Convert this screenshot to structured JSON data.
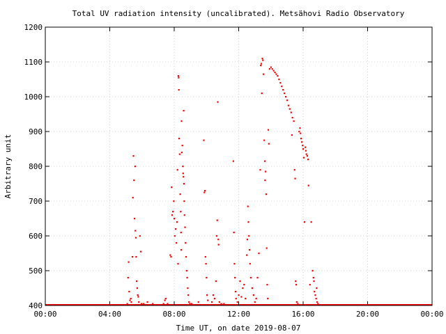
{
  "chart_data": {
    "type": "scatter",
    "title": "Total UV radiation intensity (uncalibrated). Metsähovi Radio Observatory",
    "xlabel": "Time UT, on date 2019-08-07",
    "ylabel": "Arbitrary unit",
    "xlim": [
      "00:00",
      "24:00"
    ],
    "ylim": [
      400,
      1200
    ],
    "x_ticks": [
      "00:00",
      "04:00",
      "08:00",
      "12:00",
      "16:00",
      "20:00",
      "00:00"
    ],
    "y_ticks": [
      400,
      500,
      600,
      700,
      800,
      900,
      1000,
      1100,
      1200
    ],
    "grid": true,
    "point_color": "#ff0000",
    "baseline": {
      "value": 400,
      "from": "00:00",
      "to": "24:00",
      "note_visible": false
    },
    "series": [
      {
        "points": [
          [
            "05:05",
            405
          ],
          [
            "05:08",
            480
          ],
          [
            "05:10",
            525
          ],
          [
            "05:12",
            440
          ],
          [
            "05:15",
            415
          ],
          [
            "05:18",
            420
          ],
          [
            "05:20",
            410
          ],
          [
            "05:24",
            540
          ],
          [
            "05:26",
            710
          ],
          [
            "05:28",
            830
          ],
          [
            "05:30",
            760
          ],
          [
            "05:32",
            650
          ],
          [
            "05:34",
            800
          ],
          [
            "05:35",
            615
          ],
          [
            "05:37",
            595
          ],
          [
            "05:38",
            540
          ],
          [
            "05:40",
            470
          ],
          [
            "05:42",
            450
          ],
          [
            "05:44",
            430
          ],
          [
            "05:46",
            425
          ],
          [
            "05:48",
            410
          ],
          [
            "05:52",
            600
          ],
          [
            "05:55",
            555
          ],
          [
            "05:58",
            405
          ],
          [
            "06:05",
            405
          ],
          [
            "06:20",
            410
          ],
          [
            "06:40",
            405
          ],
          [
            "07:20",
            405
          ],
          [
            "07:25",
            415
          ],
          [
            "07:28",
            420
          ],
          [
            "07:35",
            405
          ],
          [
            "07:45",
            545
          ],
          [
            "07:48",
            540
          ],
          [
            "07:50",
            740
          ],
          [
            "07:52",
            660
          ],
          [
            "07:55",
            670
          ],
          [
            "07:58",
            700
          ],
          [
            "08:00",
            650
          ],
          [
            "08:02",
            600
          ],
          [
            "08:05",
            620
          ],
          [
            "08:08",
            580
          ],
          [
            "08:10",
            640
          ],
          [
            "08:12",
            790
          ],
          [
            "08:14",
            520
          ],
          [
            "08:15",
            1060
          ],
          [
            "08:16",
            1055
          ],
          [
            "08:17",
            1020
          ],
          [
            "08:18",
            880
          ],
          [
            "08:20",
            835
          ],
          [
            "08:22",
            720
          ],
          [
            "08:24",
            670
          ],
          [
            "08:25",
            610
          ],
          [
            "08:26",
            560
          ],
          [
            "08:27",
            930
          ],
          [
            "08:28",
            840
          ],
          [
            "08:30",
            860
          ],
          [
            "08:32",
            800
          ],
          [
            "08:33",
            780
          ],
          [
            "08:34",
            770
          ],
          [
            "08:35",
            960
          ],
          [
            "08:36",
            750
          ],
          [
            "08:37",
            700
          ],
          [
            "08:38",
            660
          ],
          [
            "08:40",
            625
          ],
          [
            "08:42",
            580
          ],
          [
            "08:44",
            540
          ],
          [
            "08:46",
            500
          ],
          [
            "08:48",
            480
          ],
          [
            "08:50",
            450
          ],
          [
            "08:52",
            430
          ],
          [
            "08:55",
            410
          ],
          [
            "08:58",
            405
          ],
          [
            "09:05",
            405
          ],
          [
            "09:30",
            410
          ],
          [
            "09:50",
            875
          ],
          [
            "09:52",
            725
          ],
          [
            "09:54",
            730
          ],
          [
            "09:56",
            540
          ],
          [
            "09:58",
            520
          ],
          [
            "10:00",
            480
          ],
          [
            "10:02",
            430
          ],
          [
            "10:05",
            415
          ],
          [
            "10:20",
            410
          ],
          [
            "10:25",
            430
          ],
          [
            "10:30",
            420
          ],
          [
            "10:35",
            470
          ],
          [
            "10:38",
            600
          ],
          [
            "10:40",
            645
          ],
          [
            "10:42",
            985
          ],
          [
            "10:44",
            590
          ],
          [
            "10:45",
            575
          ],
          [
            "10:48",
            410
          ],
          [
            "10:55",
            405
          ],
          [
            "11:05",
            405
          ],
          [
            "11:40",
            815
          ],
          [
            "11:42",
            610
          ],
          [
            "11:44",
            520
          ],
          [
            "11:46",
            480
          ],
          [
            "11:48",
            440
          ],
          [
            "11:50",
            420
          ],
          [
            "11:55",
            410
          ],
          [
            "12:00",
            430
          ],
          [
            "12:05",
            470
          ],
          [
            "12:10",
            425
          ],
          [
            "12:15",
            450
          ],
          [
            "12:20",
            460
          ],
          [
            "12:25",
            420
          ],
          [
            "12:30",
            545
          ],
          [
            "12:32",
            590
          ],
          [
            "12:34",
            685
          ],
          [
            "12:36",
            640
          ],
          [
            "12:38",
            600
          ],
          [
            "12:40",
            560
          ],
          [
            "12:42",
            520
          ],
          [
            "12:45",
            480
          ],
          [
            "12:50",
            450
          ],
          [
            "12:55",
            430
          ],
          [
            "13:00",
            410
          ],
          [
            "13:05",
            420
          ],
          [
            "13:10",
            480
          ],
          [
            "13:15",
            550
          ],
          [
            "13:20",
            790
          ],
          [
            "13:22",
            1090
          ],
          [
            "13:24",
            1095
          ],
          [
            "13:26",
            1010
          ],
          [
            "13:28",
            1110
          ],
          [
            "13:30",
            1105
          ],
          [
            "13:32",
            1065
          ],
          [
            "13:35",
            875
          ],
          [
            "13:37",
            815
          ],
          [
            "13:38",
            760
          ],
          [
            "13:40",
            785
          ],
          [
            "13:42",
            720
          ],
          [
            "13:44",
            565
          ],
          [
            "13:46",
            460
          ],
          [
            "13:48",
            420
          ],
          [
            "13:50",
            905
          ],
          [
            "13:52",
            865
          ],
          [
            "13:55",
            1080
          ],
          [
            "14:00",
            1085
          ],
          [
            "14:05",
            1080
          ],
          [
            "14:10",
            1075
          ],
          [
            "14:15",
            1070
          ],
          [
            "14:20",
            1065
          ],
          [
            "14:25",
            1060
          ],
          [
            "14:30",
            1050
          ],
          [
            "14:35",
            1040
          ],
          [
            "14:40",
            1030
          ],
          [
            "14:45",
            1020
          ],
          [
            "14:50",
            1010
          ],
          [
            "14:55",
            1000
          ],
          [
            "15:00",
            990
          ],
          [
            "15:05",
            975
          ],
          [
            "15:10",
            965
          ],
          [
            "15:15",
            955
          ],
          [
            "15:18",
            890
          ],
          [
            "15:20",
            940
          ],
          [
            "15:25",
            930
          ],
          [
            "15:28",
            790
          ],
          [
            "15:30",
            765
          ],
          [
            "15:32",
            470
          ],
          [
            "15:34",
            460
          ],
          [
            "15:36",
            410
          ],
          [
            "15:40",
            405
          ],
          [
            "15:45",
            900
          ],
          [
            "15:48",
            910
          ],
          [
            "15:50",
            895
          ],
          [
            "15:52",
            880
          ],
          [
            "15:55",
            870
          ],
          [
            "15:58",
            860
          ],
          [
            "16:00",
            850
          ],
          [
            "16:02",
            825
          ],
          [
            "16:05",
            640
          ],
          [
            "16:08",
            855
          ],
          [
            "16:10",
            845
          ],
          [
            "16:12",
            835
          ],
          [
            "16:15",
            830
          ],
          [
            "16:18",
            820
          ],
          [
            "16:20",
            745
          ],
          [
            "16:25",
            460
          ],
          [
            "16:30",
            640
          ],
          [
            "16:35",
            500
          ],
          [
            "16:38",
            480
          ],
          [
            "16:40",
            470
          ],
          [
            "16:42",
            440
          ],
          [
            "16:45",
            430
          ],
          [
            "16:48",
            420
          ],
          [
            "16:50",
            450
          ],
          [
            "16:52",
            410
          ],
          [
            "16:55",
            405
          ]
        ]
      }
    ]
  }
}
